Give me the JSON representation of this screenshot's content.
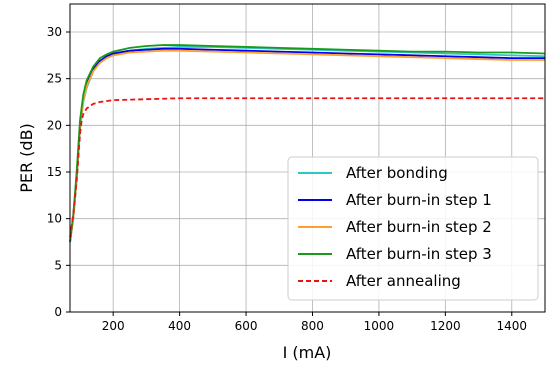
{
  "chart_data": {
    "type": "line",
    "title": "",
    "xlabel": "I (mA)",
    "ylabel": "PER (dB)",
    "xlim": [
      70,
      1500
    ],
    "ylim": [
      0,
      33
    ],
    "xticks": [
      200,
      400,
      600,
      800,
      1000,
      1200,
      1400
    ],
    "yticks": [
      0,
      5,
      10,
      15,
      20,
      25,
      30
    ],
    "grid": true,
    "legend_position": "lower-right",
    "series": [
      {
        "name": "After bonding",
        "color": "#2fc6c6",
        "style": "solid",
        "x": [
          70,
          80,
          90,
          100,
          110,
          120,
          140,
          160,
          180,
          200,
          250,
          300,
          350,
          400,
          500,
          600,
          700,
          800,
          900,
          1000,
          1100,
          1200,
          1300,
          1400,
          1500
        ],
        "y": [
          7.5,
          10,
          14,
          19.5,
          22.5,
          24,
          25.8,
          26.7,
          27.2,
          27.5,
          28.0,
          28.2,
          28.3,
          28.4,
          28.4,
          28.3,
          28.2,
          28.1,
          28.0,
          27.9,
          27.8,
          27.7,
          27.6,
          27.5,
          27.4
        ]
      },
      {
        "name": "After burn-in step 1",
        "color": "#0000ee",
        "style": "solid",
        "x": [
          70,
          80,
          90,
          100,
          110,
          120,
          140,
          160,
          180,
          200,
          250,
          300,
          350,
          400,
          500,
          600,
          700,
          800,
          900,
          1000,
          1100,
          1200,
          1300,
          1400,
          1500
        ],
        "y": [
          7.5,
          10.2,
          14.5,
          20,
          23,
          24.5,
          26.0,
          26.9,
          27.4,
          27.7,
          28.0,
          28.1,
          28.2,
          28.2,
          28.1,
          28.0,
          27.9,
          27.8,
          27.7,
          27.6,
          27.5,
          27.4,
          27.3,
          27.2,
          27.2
        ]
      },
      {
        "name": "After burn-in step 2",
        "color": "#ff9f2f",
        "style": "solid",
        "x": [
          70,
          80,
          90,
          100,
          110,
          120,
          140,
          160,
          180,
          200,
          250,
          300,
          350,
          400,
          500,
          600,
          700,
          800,
          900,
          1000,
          1100,
          1200,
          1300,
          1400,
          1500
        ],
        "y": [
          7.5,
          10,
          14.2,
          19.8,
          22.7,
          24.2,
          25.8,
          26.7,
          27.2,
          27.5,
          27.8,
          27.9,
          28.0,
          28.0,
          27.9,
          27.8,
          27.7,
          27.6,
          27.5,
          27.4,
          27.3,
          27.2,
          27.1,
          27.0,
          27.0
        ]
      },
      {
        "name": "After burn-in step 3",
        "color": "#1a9a1a",
        "style": "solid",
        "x": [
          70,
          80,
          90,
          100,
          110,
          120,
          140,
          160,
          180,
          200,
          250,
          300,
          350,
          400,
          500,
          600,
          700,
          800,
          900,
          1000,
          1100,
          1200,
          1300,
          1400,
          1500
        ],
        "y": [
          7.5,
          10.5,
          15,
          20.5,
          23.3,
          24.8,
          26.3,
          27.2,
          27.6,
          27.9,
          28.3,
          28.5,
          28.6,
          28.6,
          28.5,
          28.4,
          28.3,
          28.2,
          28.1,
          28.0,
          27.9,
          27.9,
          27.8,
          27.8,
          27.7
        ]
      },
      {
        "name": "After annealing",
        "color": "#ee1111",
        "style": "dashed",
        "x": [
          70,
          80,
          90,
          100,
          105,
          110,
          120,
          140,
          160,
          200,
          300,
          400,
          500,
          600,
          800,
          1000,
          1200,
          1400,
          1500
        ],
        "y": [
          8,
          10.5,
          14,
          19,
          20.5,
          21.2,
          21.8,
          22.3,
          22.5,
          22.7,
          22.8,
          22.9,
          22.9,
          22.9,
          22.9,
          22.9,
          22.9,
          22.9,
          22.9
        ]
      }
    ]
  }
}
